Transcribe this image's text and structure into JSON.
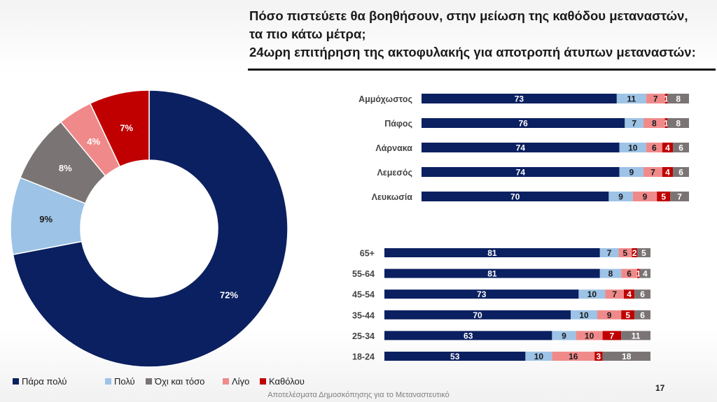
{
  "title_lines": [
    "Πόσο πιστεύετε θα βοηθήσουν, στην μείωση της καθόδου μεταναστών,",
    "τα πιο κάτω μέτρα;",
    "24ωρη επιτήρηση της ακτοφυλακής για αποτροπή άτυπων μεταναστών:"
  ],
  "footer": "Αποτελέσματα Δημοσκόπησης για το Μεταναστευτικό",
  "page_number": "17",
  "colors": {
    "Πάρα πολύ": "#0b2060",
    "Πολύ": "#9dc3e6",
    "Όχι και τόσο": "#7b7474",
    "Λίγο": "#f08a8a",
    "Καθόλου": "#c00000"
  },
  "chart_data": [
    {
      "type": "pie",
      "variant": "donut",
      "categories": [
        "Πάρα πολύ",
        "Πολύ",
        "Όχι και τόσο",
        "Λίγο",
        "Καθόλου"
      ],
      "values": [
        72,
        9,
        8,
        4,
        7
      ],
      "labels": [
        "72%",
        "9%",
        "8%",
        "4%",
        "7%"
      ],
      "legend": "bottom"
    },
    {
      "type": "bar",
      "orientation": "horizontal",
      "stacked": true,
      "categories": [
        "Αμμόχωστος",
        "Πάφος",
        "Λάρνακα",
        "Λεμεσός",
        "Λευκωσία"
      ],
      "series": [
        {
          "name": "Πάρα πολύ",
          "values": [
            73,
            76,
            74,
            74,
            70
          ]
        },
        {
          "name": "Πολύ",
          "values": [
            11,
            7,
            10,
            9,
            9
          ]
        },
        {
          "name": "Λίγο",
          "values": [
            7,
            8,
            6,
            7,
            9
          ]
        },
        {
          "name": "Καθόλου",
          "values": [
            1,
            1,
            4,
            4,
            5
          ]
        },
        {
          "name": "Όχι και τόσο",
          "values": [
            8,
            8,
            6,
            6,
            7
          ]
        }
      ]
    },
    {
      "type": "bar",
      "orientation": "horizontal",
      "stacked": true,
      "categories": [
        "65+",
        "55-64",
        "45-54",
        "35-44",
        "25-34",
        "18-24"
      ],
      "series": [
        {
          "name": "Πάρα πολύ",
          "values": [
            81,
            81,
            73,
            70,
            63,
            53
          ]
        },
        {
          "name": "Πολύ",
          "values": [
            7,
            8,
            10,
            10,
            9,
            10
          ]
        },
        {
          "name": "Λίγο",
          "values": [
            5,
            6,
            7,
            9,
            10,
            16
          ]
        },
        {
          "name": "Καθόλου",
          "values": [
            2,
            1,
            4,
            5,
            7,
            3
          ]
        },
        {
          "name": "Όχι και τόσο",
          "values": [
            5,
            4,
            6,
            6,
            11,
            18
          ]
        }
      ]
    }
  ]
}
